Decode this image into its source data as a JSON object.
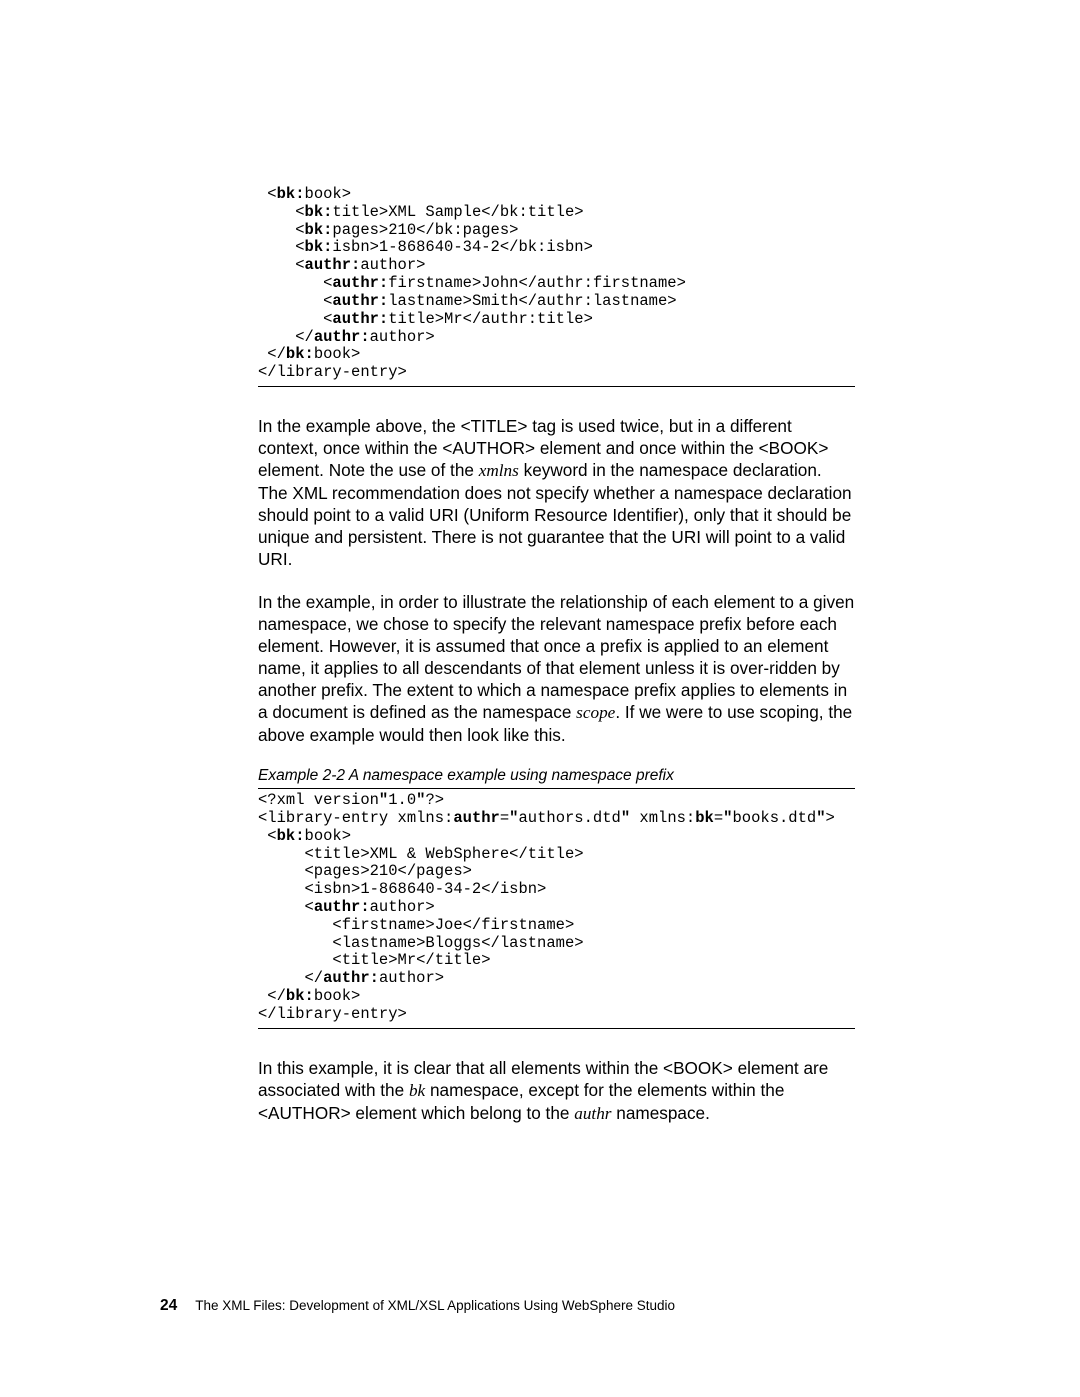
{
  "code_block_1": {
    "lines": [
      {
        "indent": " ",
        "segments": [
          {
            "t": "<"
          },
          {
            "t": "bk:",
            "b": true
          },
          {
            "t": "book>"
          }
        ]
      },
      {
        "indent": "    ",
        "segments": [
          {
            "t": "<"
          },
          {
            "t": "bk:",
            "b": true
          },
          {
            "t": "title>XML Sample</bk:title>"
          }
        ]
      },
      {
        "indent": "    ",
        "segments": [
          {
            "t": "<"
          },
          {
            "t": "bk:",
            "b": true
          },
          {
            "t": "pages>210</bk:pages>"
          }
        ]
      },
      {
        "indent": "    ",
        "segments": [
          {
            "t": "<"
          },
          {
            "t": "bk:",
            "b": true
          },
          {
            "t": "isbn>1-868640-34-2</bk:isbn>"
          }
        ]
      },
      {
        "indent": "    ",
        "segments": [
          {
            "t": "<"
          },
          {
            "t": "authr:",
            "b": true
          },
          {
            "t": "author>"
          }
        ]
      },
      {
        "indent": "       ",
        "segments": [
          {
            "t": "<"
          },
          {
            "t": "authr:",
            "b": true
          },
          {
            "t": "firstname>John</authr:firstname>"
          }
        ]
      },
      {
        "indent": "       ",
        "segments": [
          {
            "t": "<"
          },
          {
            "t": "authr:",
            "b": true
          },
          {
            "t": "lastname>Smith</authr:lastname>"
          }
        ]
      },
      {
        "indent": "       ",
        "segments": [
          {
            "t": "<"
          },
          {
            "t": "authr:",
            "b": true
          },
          {
            "t": "title>Mr</authr:title>"
          }
        ]
      },
      {
        "indent": "    ",
        "segments": [
          {
            "t": "</"
          },
          {
            "t": "authr:",
            "b": true
          },
          {
            "t": "author>"
          }
        ]
      },
      {
        "indent": " ",
        "segments": [
          {
            "t": "</"
          },
          {
            "t": "bk:",
            "b": true
          },
          {
            "t": "book>"
          }
        ]
      },
      {
        "indent": "",
        "segments": [
          {
            "t": "</library-entry>"
          }
        ]
      }
    ]
  },
  "para1": {
    "pre1": "In the example above, the <TITLE> tag is used twice, but in a different context, once within the <AUTHOR> element and once within the <BOOK> element. Note the use of the ",
    "italic1": "xmlns",
    "post1": " keyword in the namespace declaration. The XML recommendation does not specify whether a namespace declaration should point to a valid URI (Uniform Resource Identifier), only that it should be unique and persistent. There is not guarantee that the URI will point to a valid URI."
  },
  "para2": {
    "pre1": "In the example, in order to illustrate the relationship of each element to a given namespace, we chose to specify the relevant namespace prefix before each element. However, it is assumed that once a prefix is applied to an element name, it applies to all descendants of that element unless it is over-ridden by another prefix. The extent to which a namespace prefix applies to elements in a document is defined as the namespace ",
    "italic1": "scope",
    "post1": ". If we were to use scoping, the above example would then look like this."
  },
  "example_caption": "Example 2-2   A namespace example using namespace prefix",
  "code_block_2": {
    "lines": [
      {
        "indent": "",
        "segments": [
          {
            "t": "<?xml version"
          },
          {
            "t": "\"",
            "b": true
          },
          {
            "t": "1.0"
          },
          {
            "t": "\"",
            "b": true
          },
          {
            "t": "?>"
          }
        ]
      },
      {
        "indent": "",
        "segments": [
          {
            "t": "<library-entry xmlns:"
          },
          {
            "t": "authr",
            "b": true
          },
          {
            "t": "="
          },
          {
            "t": "\"",
            "b": true
          },
          {
            "t": "authors.dtd"
          },
          {
            "t": "\"",
            "b": true
          },
          {
            "t": " xmlns:"
          },
          {
            "t": "bk",
            "b": true
          },
          {
            "t": "="
          },
          {
            "t": "\"",
            "b": true
          },
          {
            "t": "books.dtd"
          },
          {
            "t": "\"",
            "b": true
          },
          {
            "t": ">"
          }
        ]
      },
      {
        "indent": " ",
        "segments": [
          {
            "t": "<"
          },
          {
            "t": "bk:",
            "b": true
          },
          {
            "t": "book>"
          }
        ]
      },
      {
        "indent": "     ",
        "segments": [
          {
            "t": "<title>XML & WebSphere</title>"
          }
        ]
      },
      {
        "indent": "     ",
        "segments": [
          {
            "t": "<pages>210</pages>"
          }
        ]
      },
      {
        "indent": "     ",
        "segments": [
          {
            "t": "<isbn>1-868640-34-2</isbn>"
          }
        ]
      },
      {
        "indent": "     ",
        "segments": [
          {
            "t": "<"
          },
          {
            "t": "authr:",
            "b": true
          },
          {
            "t": "author>"
          }
        ]
      },
      {
        "indent": "        ",
        "segments": [
          {
            "t": "<firstname>Joe</firstname>"
          }
        ]
      },
      {
        "indent": "        ",
        "segments": [
          {
            "t": "<lastname>Bloggs</lastname>"
          }
        ]
      },
      {
        "indent": "        ",
        "segments": [
          {
            "t": "<title>Mr</title>"
          }
        ]
      },
      {
        "indent": "     ",
        "segments": [
          {
            "t": "</"
          },
          {
            "t": "authr:",
            "b": true
          },
          {
            "t": "author>"
          }
        ]
      },
      {
        "indent": " ",
        "segments": [
          {
            "t": "</"
          },
          {
            "t": "bk:",
            "b": true
          },
          {
            "t": "book>"
          }
        ]
      },
      {
        "indent": "",
        "segments": [
          {
            "t": "</library-entry>"
          }
        ]
      }
    ]
  },
  "para3": {
    "pre1": "In this example, it is clear that all elements within the <BOOK> element are associated with the ",
    "italic1": "bk",
    "mid1": " namespace, except for the elements within the <AUTHOR> element which belong to the ",
    "italic2": "authr",
    "post1": " namespace."
  },
  "footer": {
    "page_num": "24",
    "title": "The XML Files:   Development of XML/XSL Applications Using WebSphere Studio"
  }
}
